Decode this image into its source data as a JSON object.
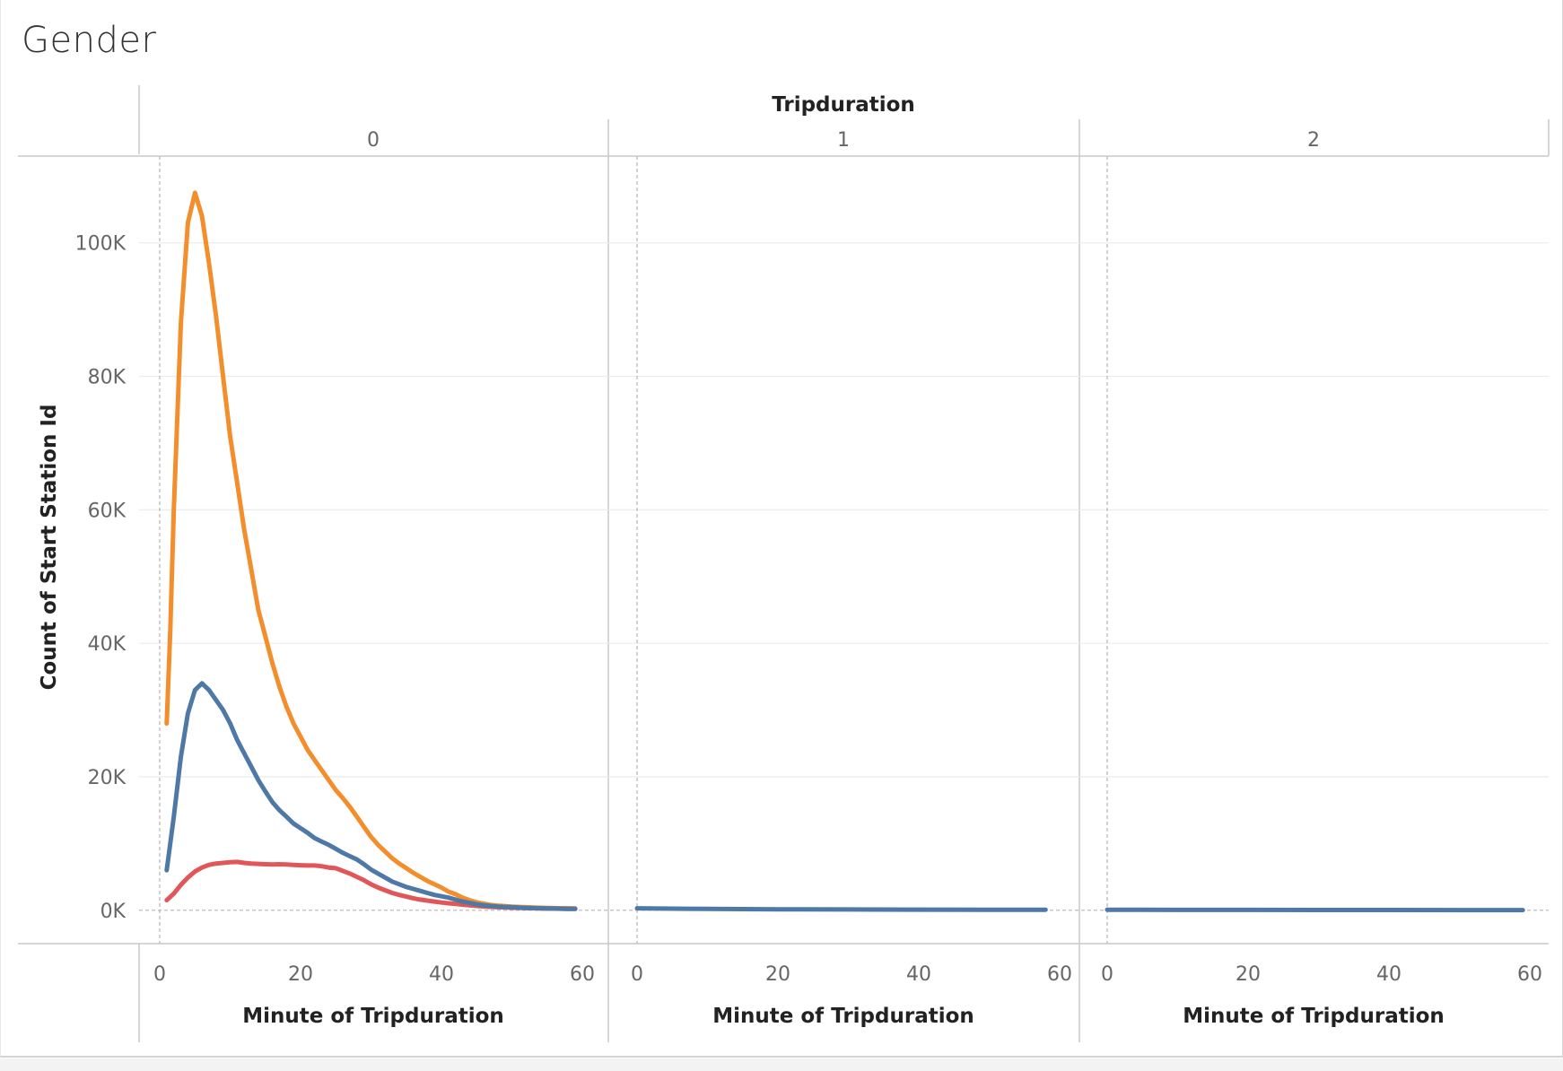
{
  "title": "Gender",
  "chart_data": {
    "type": "line",
    "title": "Gender",
    "column_header": "Tripduration",
    "panels": [
      "0",
      "1",
      "2"
    ],
    "xlabel": "Minute of Tripduration",
    "ylabel": "Count of Start Station Id",
    "xlim": [
      0,
      60
    ],
    "ylim": [
      -5000,
      113000
    ],
    "xticks": [
      0,
      20,
      40,
      60
    ],
    "xtick_labels": [
      "0",
      "20",
      "40",
      "60"
    ],
    "yticks": [
      0,
      20000,
      40000,
      60000,
      80000,
      100000
    ],
    "ytick_labels": [
      "0K",
      "20K",
      "40K",
      "60K",
      "80K",
      "100K"
    ],
    "grid": true,
    "colors": {
      "orange": "#f28e2b",
      "blue": "#4e79a7",
      "red": "#e15759",
      "grid": "#ebebeb",
      "axis": "#c8c8c8"
    },
    "series": [
      {
        "color": "#f28e2b",
        "points": [
          [
            [
              1,
              28000
            ],
            [
              1.5,
              42000
            ],
            [
              2,
              60000
            ],
            [
              3,
              88000
            ],
            [
              4,
              103000
            ],
            [
              5,
              107500
            ],
            [
              6,
              104000
            ],
            [
              7,
              97000
            ],
            [
              8,
              89000
            ],
            [
              9,
              80000
            ],
            [
              10,
              71000
            ],
            [
              11,
              64000
            ],
            [
              12,
              57000
            ],
            [
              13,
              51000
            ],
            [
              14,
              45000
            ],
            [
              15,
              41000
            ],
            [
              16,
              37000
            ],
            [
              17,
              33500
            ],
            [
              18,
              30500
            ],
            [
              19,
              28000
            ],
            [
              20,
              26000
            ],
            [
              21,
              24000
            ],
            [
              22,
              22500
            ],
            [
              23,
              21000
            ],
            [
              24,
              19500
            ],
            [
              25,
              18000
            ],
            [
              26,
              16800
            ],
            [
              27,
              15500
            ],
            [
              28,
              14000
            ],
            [
              29,
              12500
            ],
            [
              30,
              11000
            ],
            [
              31,
              9800
            ],
            [
              32,
              8800
            ],
            [
              33,
              7800
            ],
            [
              34,
              7000
            ],
            [
              35,
              6300
            ],
            [
              36,
              5600
            ],
            [
              37,
              5000
            ],
            [
              38,
              4400
            ],
            [
              39,
              3900
            ],
            [
              40,
              3400
            ],
            [
              41,
              2800
            ],
            [
              42,
              2400
            ],
            [
              43,
              1900
            ],
            [
              44,
              1500
            ],
            [
              45,
              1200
            ],
            [
              46,
              1000
            ],
            [
              47,
              800
            ],
            [
              48,
              700
            ],
            [
              50,
              550
            ],
            [
              52,
              450
            ],
            [
              54,
              380
            ],
            [
              56,
              320
            ],
            [
              58,
              300
            ],
            [
              59,
              280
            ]
          ],
          [],
          []
        ]
      },
      {
        "color": "#4e79a7",
        "points": [
          [
            [
              1,
              6000
            ],
            [
              2,
              14000
            ],
            [
              3,
              23000
            ],
            [
              4,
              29500
            ],
            [
              5,
              33000
            ],
            [
              6,
              34000
            ],
            [
              7,
              33000
            ],
            [
              8,
              31500
            ],
            [
              9,
              30000
            ],
            [
              10,
              28000
            ],
            [
              11,
              25500
            ],
            [
              12,
              23500
            ],
            [
              13,
              21500
            ],
            [
              14,
              19500
            ],
            [
              15,
              17800
            ],
            [
              16,
              16200
            ],
            [
              17,
              15000
            ],
            [
              18,
              14000
            ],
            [
              19,
              13000
            ],
            [
              20,
              12300
            ],
            [
              21,
              11600
            ],
            [
              22,
              10800
            ],
            [
              23,
              10300
            ],
            [
              24,
              9800
            ],
            [
              25,
              9200
            ],
            [
              26,
              8600
            ],
            [
              27,
              8100
            ],
            [
              28,
              7600
            ],
            [
              29,
              6900
            ],
            [
              30,
              6100
            ],
            [
              31,
              5500
            ],
            [
              32,
              4900
            ],
            [
              33,
              4300
            ],
            [
              34,
              3900
            ],
            [
              35,
              3500
            ],
            [
              36,
              3200
            ],
            [
              37,
              2900
            ],
            [
              38,
              2600
            ],
            [
              39,
              2300
            ],
            [
              40,
              2100
            ],
            [
              41,
              1900
            ],
            [
              42,
              1600
            ],
            [
              43,
              1300
            ],
            [
              44,
              1100
            ],
            [
              45,
              900
            ],
            [
              46,
              750
            ],
            [
              48,
              550
            ],
            [
              50,
              450
            ],
            [
              52,
              350
            ],
            [
              54,
              300
            ],
            [
              56,
              250
            ],
            [
              58,
              220
            ],
            [
              59,
              200
            ]
          ],
          [
            [
              0,
              300
            ],
            [
              10,
              200
            ],
            [
              20,
              150
            ],
            [
              30,
              120
            ],
            [
              40,
              100
            ],
            [
              50,
              80
            ],
            [
              58,
              80
            ]
          ],
          [
            [
              0,
              80
            ],
            [
              10,
              60
            ],
            [
              20,
              50
            ],
            [
              30,
              40
            ],
            [
              40,
              40
            ],
            [
              50,
              30
            ],
            [
              59,
              30
            ]
          ]
        ]
      },
      {
        "color": "#e15759",
        "points": [
          [
            [
              1,
              1500
            ],
            [
              2,
              2500
            ],
            [
              3,
              3800
            ],
            [
              4,
              4900
            ],
            [
              5,
              5800
            ],
            [
              6,
              6400
            ],
            [
              7,
              6800
            ],
            [
              8,
              7000
            ],
            [
              9,
              7100
            ],
            [
              10,
              7200
            ],
            [
              11,
              7250
            ],
            [
              12,
              7100
            ],
            [
              13,
              7000
            ],
            [
              14,
              6950
            ],
            [
              15,
              6900
            ],
            [
              16,
              6850
            ],
            [
              17,
              6900
            ],
            [
              18,
              6850
            ],
            [
              19,
              6800
            ],
            [
              20,
              6750
            ],
            [
              21,
              6700
            ],
            [
              22,
              6700
            ],
            [
              23,
              6600
            ],
            [
              24,
              6400
            ],
            [
              25,
              6300
            ],
            [
              26,
              5900
            ],
            [
              27,
              5500
            ],
            [
              28,
              5000
            ],
            [
              29,
              4500
            ],
            [
              30,
              3900
            ],
            [
              31,
              3400
            ],
            [
              32,
              3000
            ],
            [
              33,
              2600
            ],
            [
              34,
              2300
            ],
            [
              35,
              2050
            ],
            [
              36,
              1800
            ],
            [
              37,
              1600
            ],
            [
              38,
              1450
            ],
            [
              39,
              1300
            ],
            [
              40,
              1150
            ],
            [
              41,
              1050
            ],
            [
              42,
              950
            ],
            [
              43,
              850
            ],
            [
              44,
              750
            ],
            [
              45,
              650
            ],
            [
              46,
              560
            ],
            [
              48,
              450
            ],
            [
              50,
              380
            ],
            [
              52,
              320
            ],
            [
              54,
              280
            ],
            [
              56,
              240
            ],
            [
              58,
              210
            ],
            [
              59,
              200
            ]
          ],
          [],
          []
        ]
      }
    ]
  }
}
